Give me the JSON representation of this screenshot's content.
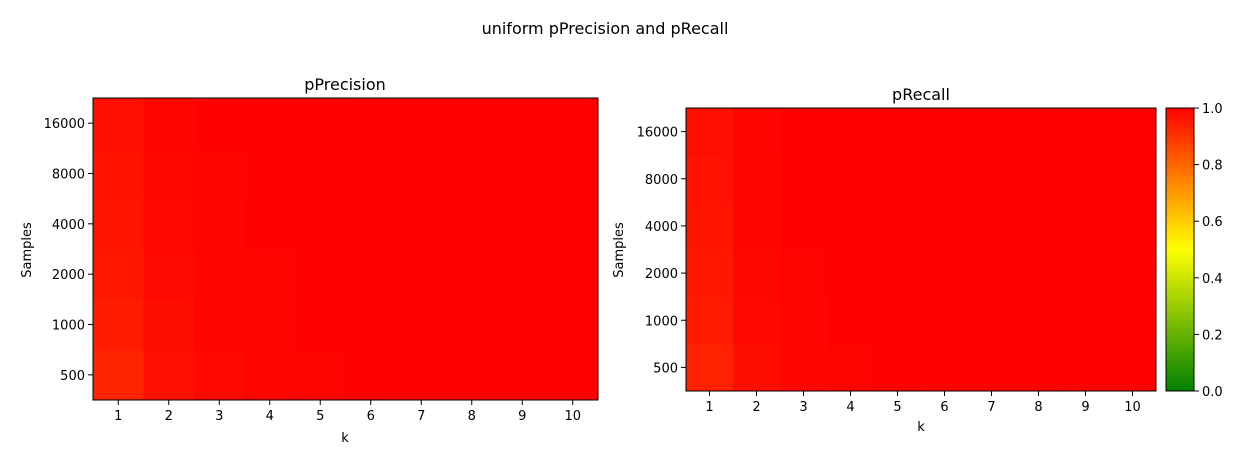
{
  "figure": {
    "title": "uniform pPrecision and pRecall"
  },
  "colormap": {
    "stops": [
      "#008000",
      "#ffff00",
      "#ff0000"
    ],
    "vmin": 0.0,
    "vmax": 1.0
  },
  "colorbar": {
    "ticks": [
      "0.0",
      "0.2",
      "0.4",
      "0.6",
      "0.8",
      "1.0"
    ]
  },
  "chart_data": [
    {
      "type": "heatmap",
      "title": "pPrecision",
      "xlabel": "k",
      "ylabel": "Samples",
      "x": [
        "1",
        "2",
        "3",
        "4",
        "5",
        "6",
        "7",
        "8",
        "9",
        "10"
      ],
      "y": [
        "500",
        "1000",
        "2000",
        "4000",
        "8000",
        "16000"
      ],
      "values": [
        [
          0.93,
          0.97,
          0.985,
          0.99,
          0.995,
          0.997,
          0.998,
          0.999,
          0.999,
          1.0
        ],
        [
          0.945,
          0.975,
          0.99,
          0.995,
          0.997,
          0.998,
          0.999,
          0.999,
          1.0,
          1.0
        ],
        [
          0.955,
          0.98,
          0.99,
          0.995,
          0.998,
          0.999,
          0.999,
          1.0,
          1.0,
          1.0
        ],
        [
          0.96,
          0.985,
          0.993,
          0.997,
          0.998,
          0.999,
          1.0,
          1.0,
          1.0,
          1.0
        ],
        [
          0.965,
          0.988,
          0.995,
          0.998,
          0.999,
          1.0,
          1.0,
          1.0,
          1.0,
          1.0
        ],
        [
          0.97,
          0.99,
          0.996,
          0.998,
          0.999,
          1.0,
          1.0,
          1.0,
          1.0,
          1.0
        ]
      ]
    },
    {
      "type": "heatmap",
      "title": "pRecall",
      "xlabel": "k",
      "ylabel": "Samples",
      "x": [
        "1",
        "2",
        "3",
        "4",
        "5",
        "6",
        "7",
        "8",
        "9",
        "10"
      ],
      "y": [
        "500",
        "1000",
        "2000",
        "4000",
        "8000",
        "16000"
      ],
      "values": [
        [
          0.935,
          0.975,
          0.99,
          0.995,
          0.997,
          0.998,
          0.999,
          0.999,
          1.0,
          1.0
        ],
        [
          0.95,
          0.985,
          0.993,
          0.997,
          0.998,
          0.999,
          1.0,
          1.0,
          1.0,
          1.0
        ],
        [
          0.955,
          0.988,
          0.995,
          0.998,
          0.999,
          1.0,
          1.0,
          1.0,
          1.0,
          1.0
        ],
        [
          0.96,
          0.99,
          0.996,
          0.998,
          0.999,
          1.0,
          1.0,
          1.0,
          1.0,
          1.0
        ],
        [
          0.965,
          0.992,
          0.997,
          0.999,
          1.0,
          1.0,
          1.0,
          1.0,
          1.0,
          1.0
        ],
        [
          0.97,
          0.993,
          0.998,
          0.999,
          1.0,
          1.0,
          1.0,
          1.0,
          1.0,
          1.0
        ]
      ]
    }
  ]
}
